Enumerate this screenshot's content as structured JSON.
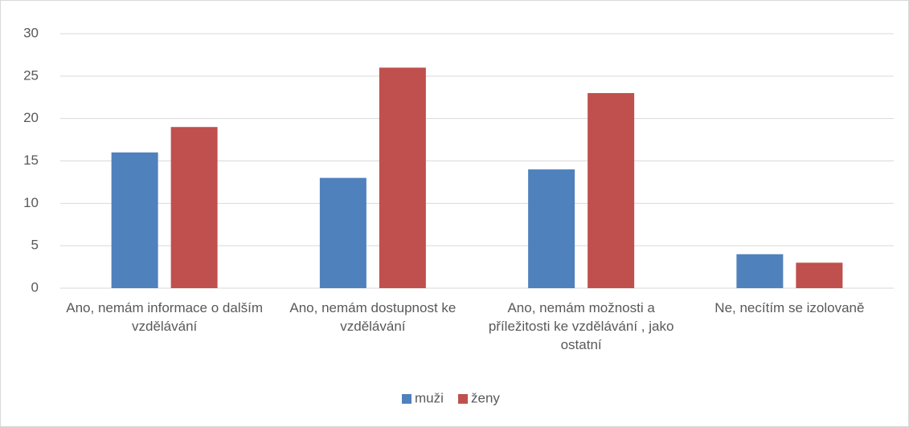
{
  "chart_data": {
    "type": "bar",
    "categories": [
      "Ano, nemám informace o dalším vzdělávání",
      "Ano, nemám dostupnost ke vzdělávání",
      "Ano, nemám možnosti a příležitosti ke vzdělávání , jako ostatní",
      "Ne, necítím se izolovaně"
    ],
    "series": [
      {
        "name": "muži",
        "color": "#4f81bd",
        "values": [
          16,
          13,
          14,
          4
        ]
      },
      {
        "name": "ženy",
        "color": "#c0504d",
        "values": [
          19,
          26,
          23,
          3
        ]
      }
    ],
    "ylim": [
      0,
      30
    ],
    "yticks": [
      0,
      5,
      10,
      15,
      20,
      25,
      30
    ],
    "grid": true,
    "legend": "bottom"
  }
}
